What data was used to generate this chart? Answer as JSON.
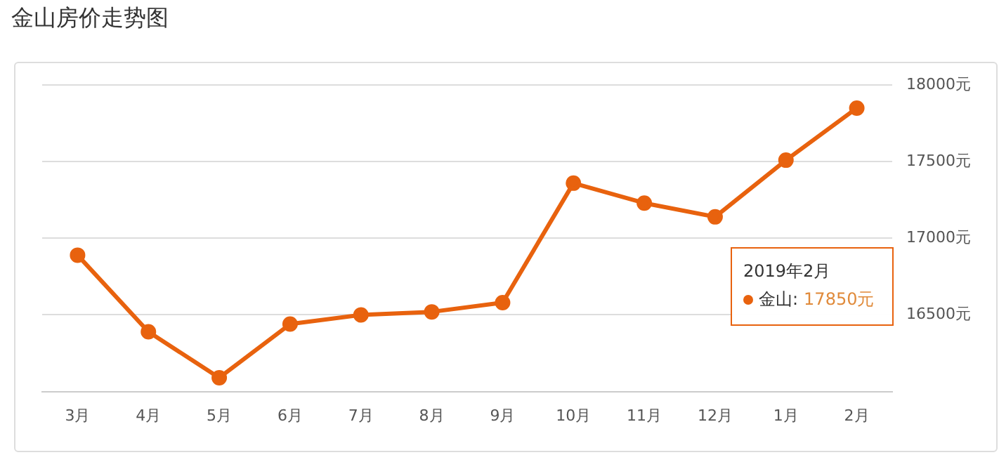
{
  "chart_data": {
    "type": "line",
    "title": "金山房价走势图",
    "categories": [
      "3月",
      "4月",
      "5月",
      "6月",
      "7月",
      "8月",
      "9月",
      "10月",
      "11月",
      "12月",
      "1月",
      "2月"
    ],
    "series": [
      {
        "name": "金山",
        "color": "#e8620e",
        "values": [
          16890,
          16390,
          16090,
          16440,
          16500,
          16520,
          16580,
          17360,
          17230,
          17140,
          17510,
          17850
        ]
      }
    ],
    "ylim": [
      16000,
      18000
    ],
    "yticks": [
      {
        "value": 16000,
        "label": null
      },
      {
        "value": 16500,
        "label": "16500元"
      },
      {
        "value": 17000,
        "label": "17000元"
      },
      {
        "value": 17500,
        "label": "17500元"
      },
      {
        "value": 18000,
        "label": "18000元"
      }
    ],
    "grid": "y",
    "legend": "right",
    "marker": "circle",
    "line_style": "solid",
    "annotations": [
      "2019年2月",
      ":",
      "17850元"
    ]
  }
}
